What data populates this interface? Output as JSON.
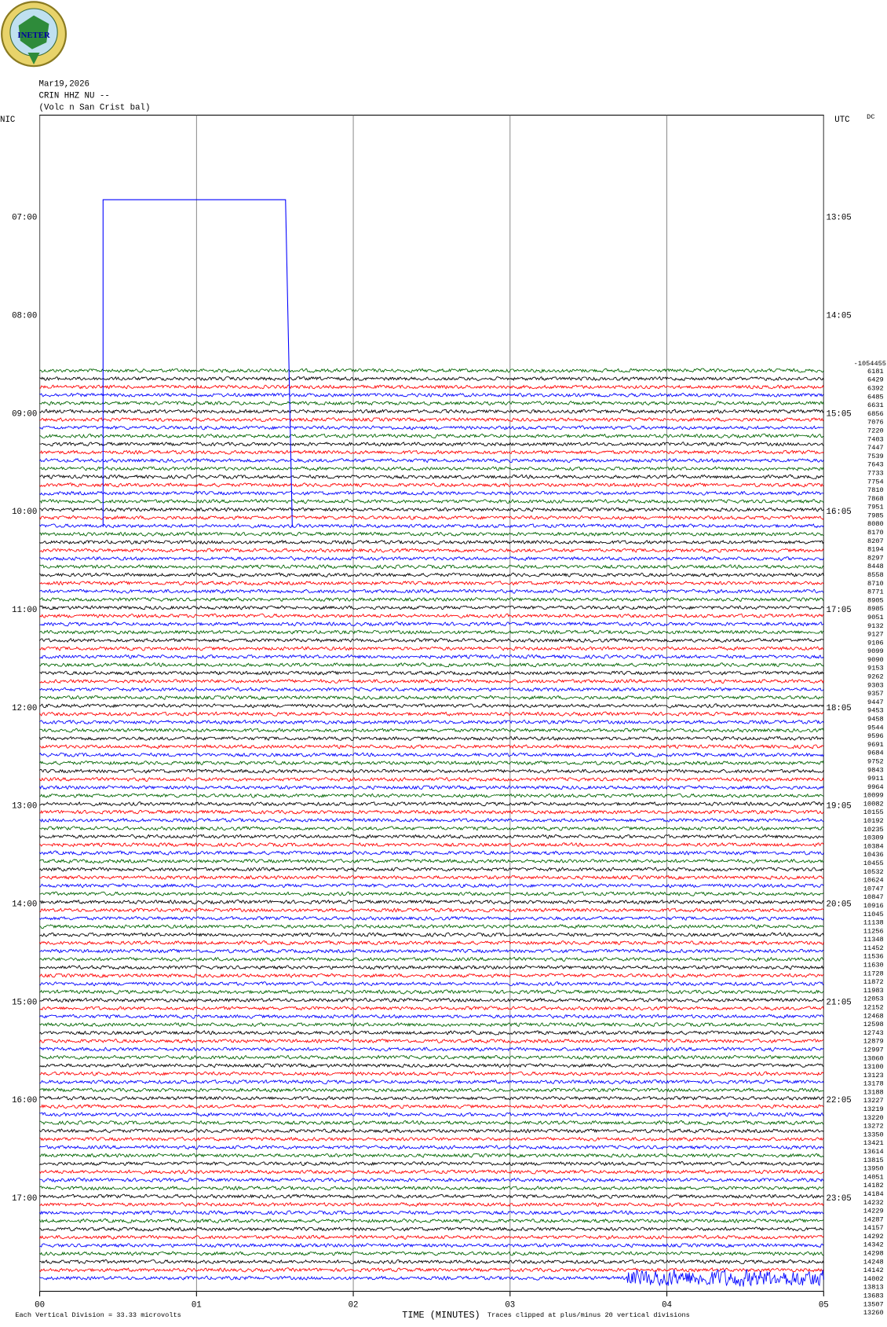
{
  "chart_data": {
    "type": "helicorder",
    "logo": "INETER",
    "title_lines": [
      "Mar19,2026",
      "CRIN HHZ NU --",
      "(Volc n San Crist bal)"
    ],
    "left_label": "NIC",
    "right_label": "UTC",
    "dc_label": "DC",
    "dc_header": -1054455,
    "xlabel": "TIME (MINUTES)",
    "xlim": [
      0,
      5
    ],
    "xticks": [
      {
        "value": 0,
        "label": "00"
      },
      {
        "value": 1,
        "label": "01"
      },
      {
        "value": 2,
        "label": "02"
      },
      {
        "value": 3,
        "label": "03"
      },
      {
        "value": 4,
        "label": "04"
      },
      {
        "value": 5,
        "label": "05"
      }
    ],
    "left_times": [
      "07:00",
      "08:00",
      "09:00",
      "10:00",
      "11:00",
      "12:00",
      "13:00",
      "14:00",
      "15:00",
      "16:00",
      "17:00"
    ],
    "right_times": [
      "13:05",
      "14:05",
      "15:05",
      "16:05",
      "17:05",
      "18:05",
      "19:05",
      "20:05",
      "21:05",
      "22:05",
      "23:05"
    ],
    "trace_colors": [
      "#006400",
      "#000000",
      "#ff0000",
      "#0000ff"
    ],
    "dc_values": [
      6181,
      6429,
      6392,
      6485,
      6631,
      6856,
      7076,
      7220,
      7403,
      7447,
      7539,
      7643,
      7733,
      7754,
      7810,
      7868,
      7951,
      7985,
      8080,
      8170,
      8207,
      8194,
      8297,
      8448,
      8558,
      8710,
      8771,
      8905,
      8985,
      9051,
      9132,
      9127,
      9106,
      9099,
      9090,
      9153,
      9262,
      9303,
      9357,
      9447,
      9453,
      9458,
      9544,
      9596,
      9691,
      9684,
      9752,
      9843,
      9911,
      9964,
      10099,
      10082,
      10155,
      10192,
      10235,
      10309,
      10384,
      10436,
      10455,
      10532,
      10624,
      10747,
      10847,
      10916,
      11045,
      11138,
      11256,
      11348,
      11452,
      11536,
      11630,
      11728,
      11872,
      11983,
      12053,
      12152,
      12468,
      12598,
      12743,
      12879,
      12997,
      13060,
      13100,
      13123,
      13178,
      13188,
      13227,
      13219,
      13220,
      13272,
      13350,
      13421,
      13614,
      13815,
      13950,
      14051,
      14182,
      14184,
      14232,
      14229,
      14287,
      14157,
      14292,
      14342,
      14298,
      14248,
      14142,
      14002,
      13813,
      13683,
      13507,
      13260
    ],
    "footer_left": "Each Vertical Division =   33.33 microvolts",
    "footer_right": "Traces clipped at plus/minus 20 vertical divisions"
  }
}
